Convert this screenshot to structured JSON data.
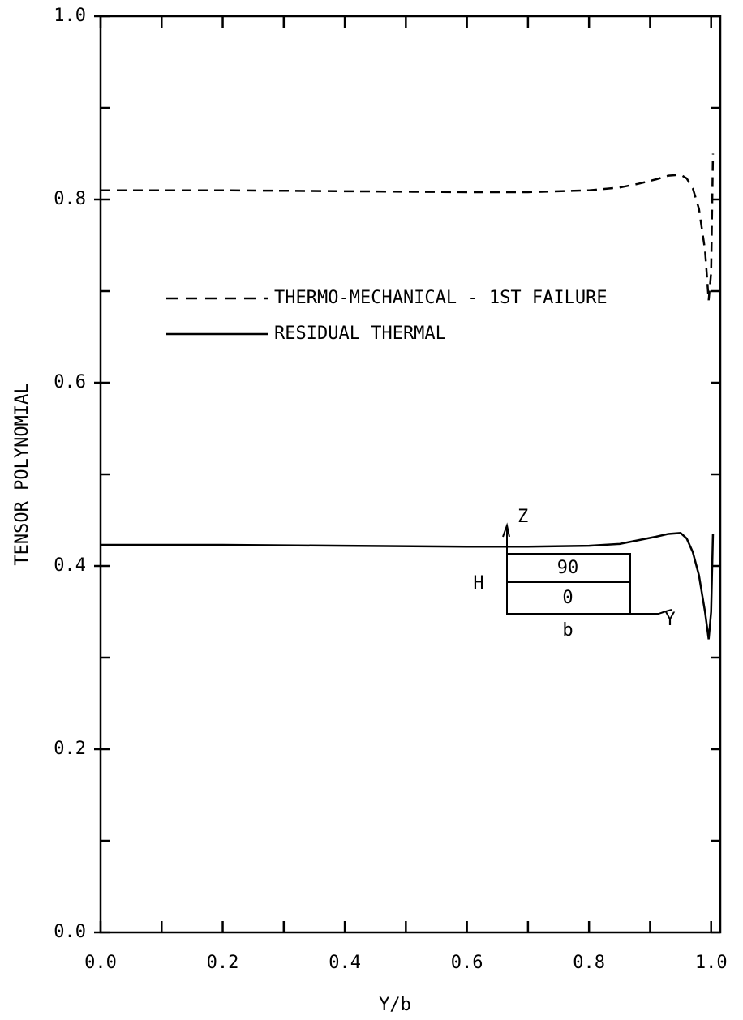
{
  "chart_data": {
    "type": "line",
    "xlabel": "Y/b",
    "ylabel": "TENSOR POLYNOMIAL",
    "xlim": [
      0,
      1.015
    ],
    "ylim": [
      0,
      1
    ],
    "xticks": [
      {
        "value": 0,
        "label": "0.0"
      },
      0.2,
      0.4,
      0.6,
      0.8,
      {
        "value": 1,
        "label": "1.0"
      }
    ],
    "yticks": [
      {
        "value": 0,
        "label": "0.0"
      },
      0.2,
      0.4,
      0.6,
      0.8,
      {
        "value": 1,
        "label": "1.0"
      }
    ],
    "xminorticks": [
      0.1,
      0.3,
      0.5,
      0.7,
      0.9
    ],
    "yminorticks": [
      0.1,
      0.3,
      0.5,
      0.7,
      0.9
    ],
    "series": [
      {
        "name": "THERMO-MECHANICAL - 1ST FAILURE",
        "color": "#000000",
        "dash": true,
        "x": [
          0,
          0.2,
          0.4,
          0.6,
          0.7,
          0.8,
          0.85,
          0.88,
          0.91,
          0.93,
          0.95,
          0.96,
          0.97,
          0.98,
          0.99,
          0.996,
          1.0,
          1.003
        ],
        "values": [
          0.81,
          0.81,
          0.809,
          0.808,
          0.808,
          0.81,
          0.813,
          0.817,
          0.822,
          0.826,
          0.827,
          0.823,
          0.812,
          0.79,
          0.745,
          0.69,
          0.72,
          0.85
        ]
      },
      {
        "name": "RESIDUAL THERMAL",
        "color": "#000000",
        "dash": false,
        "x": [
          0,
          0.2,
          0.4,
          0.6,
          0.7,
          0.8,
          0.85,
          0.88,
          0.91,
          0.93,
          0.95,
          0.96,
          0.97,
          0.98,
          0.99,
          0.996,
          1.0,
          1.003
        ],
        "values": [
          0.423,
          0.423,
          0.422,
          0.421,
          0.421,
          0.422,
          0.424,
          0.428,
          0.432,
          0.435,
          0.436,
          0.43,
          0.415,
          0.39,
          0.35,
          0.32,
          0.35,
          0.435
        ]
      }
    ],
    "inset": {
      "z_axis": "Z",
      "y_axis": "Y",
      "top_layer": "90",
      "bottom_layer": "0",
      "height": "H",
      "width": "b"
    }
  }
}
